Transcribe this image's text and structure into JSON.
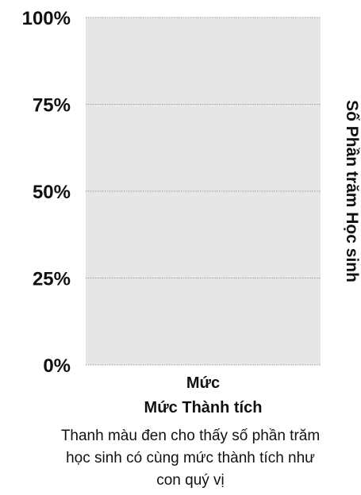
{
  "chart_data": {
    "type": "bar",
    "categories": [
      "Mức"
    ],
    "values": [
      null
    ],
    "xlabel": "Mức Thành tích",
    "ylabel": "Số Phần trăm Học sinh",
    "ylim": [
      0,
      100
    ],
    "yticks": [
      "0%",
      "25%",
      "50%",
      "75%",
      "100%"
    ],
    "ytick_values": [
      0,
      25,
      50,
      75,
      100
    ],
    "grid": true,
    "caption": "Thanh màu đen cho thấy số phần trăm học sinh có cùng mức thành tích như con quý vị",
    "colors": {
      "plot_background": "#e6e6e6",
      "gridline": "#9a9a9a",
      "text": "#111111"
    }
  }
}
